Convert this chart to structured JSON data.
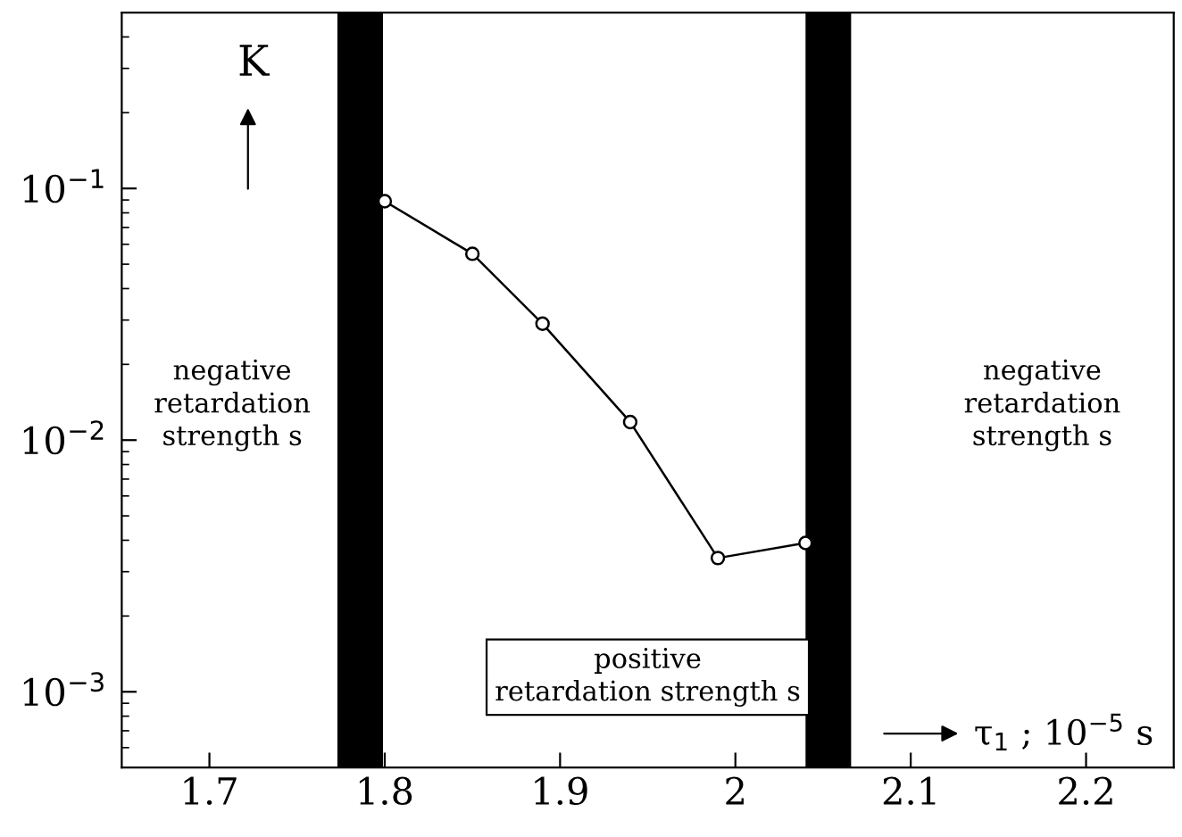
{
  "chart_data": {
    "type": "line",
    "xlabel": "τ$_{1}$ ; 10$^{−5}$ s",
    "ylabel": "K",
    "x": [
      1.8,
      1.85,
      1.89,
      1.94,
      1.99,
      2.04
    ],
    "series": [
      {
        "color": "#000000",
        "values": [
          0.089,
          0.055,
          0.029,
          0.0118,
          0.0034,
          0.0039
        ]
      }
    ],
    "marker": "circle",
    "log": "y",
    "xlim": [
      1.65,
      2.25
    ],
    "xticks": [
      1.7,
      1.8,
      1.9,
      2,
      2.1,
      2.2
    ],
    "ylim": [
      0.0005,
      0.5
    ],
    "yticks": [
      {
        "value": 0.001,
        "label": "10$^{−3}$"
      },
      {
        "value": 0.01,
        "label": "10$^{−2}$"
      },
      {
        "value": 0.1,
        "label": "10$^{−1}$"
      }
    ],
    "bands": [
      {
        "axis": "x",
        "from": 1.773,
        "to": 1.799,
        "color": "#000000"
      },
      {
        "axis": "x",
        "from": 2.04,
        "to": 2.066,
        "color": "#000000"
      }
    ],
    "annotations": [
      "negative\nretardation\nstrength s",
      "positive\nretardation strength s",
      "negative\nretardation\nstrength s"
    ],
    "grid": false,
    "legend": false
  }
}
